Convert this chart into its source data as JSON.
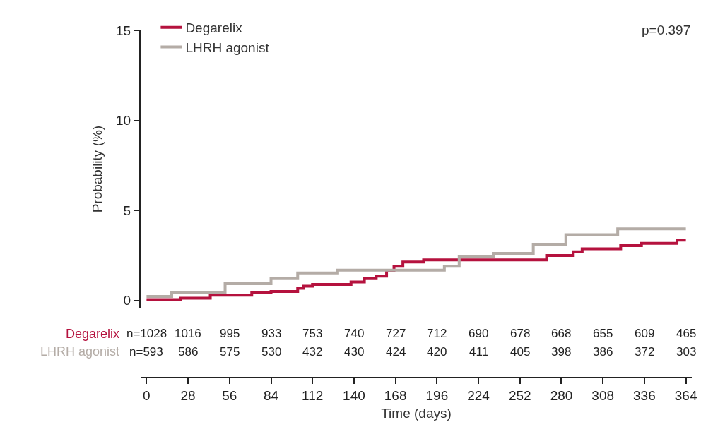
{
  "chart_data": {
    "type": "step",
    "xlabel": "Time (days)",
    "ylabel": "Probability (%)",
    "xlim": [
      -4,
      368
    ],
    "xticks": [
      0,
      28,
      56,
      84,
      112,
      140,
      168,
      196,
      224,
      252,
      280,
      308,
      336,
      364
    ],
    "ylim": [
      -0.4,
      15
    ],
    "yticks": [
      0,
      5,
      10,
      15
    ],
    "grid": false,
    "legend": "top left",
    "marker": "none",
    "line_style": "solid",
    "series": [
      {
        "name": "Degarelix",
        "color": "#b5123e",
        "x": [
          0,
          23,
          43,
          71,
          84,
          102,
          106,
          112,
          138,
          147,
          155,
          162,
          167,
          173,
          187,
          270,
          288,
          294,
          320,
          334,
          358,
          364
        ],
        "values": [
          0.05,
          0.13,
          0.3,
          0.42,
          0.5,
          0.68,
          0.8,
          0.89,
          1.03,
          1.22,
          1.35,
          1.64,
          1.9,
          2.14,
          2.26,
          2.5,
          2.71,
          2.87,
          3.05,
          3.18,
          3.35,
          3.35
        ]
      },
      {
        "name": "LHRH agonist",
        "color": "#b4aca6",
        "x": [
          0,
          17,
          53,
          84,
          102,
          129,
          201,
          211,
          234,
          261,
          283,
          318,
          364
        ],
        "values": [
          0.23,
          0.46,
          0.93,
          1.22,
          1.53,
          1.69,
          1.9,
          2.45,
          2.62,
          3.09,
          3.66,
          3.98,
          3.98
        ]
      }
    ],
    "annotations": [
      "p=0.397",
      "Degarelix",
      "n=1028",
      "1016",
      "995",
      "933",
      "753",
      "740",
      "727",
      "712",
      "690",
      "678",
      "668",
      "655",
      "609",
      "465",
      "LHRH agonist",
      "n=593",
      "586",
      "575",
      "530",
      "432",
      "430",
      "424",
      "420",
      "411",
      "405",
      "398",
      "386",
      "372",
      "303"
    ]
  }
}
